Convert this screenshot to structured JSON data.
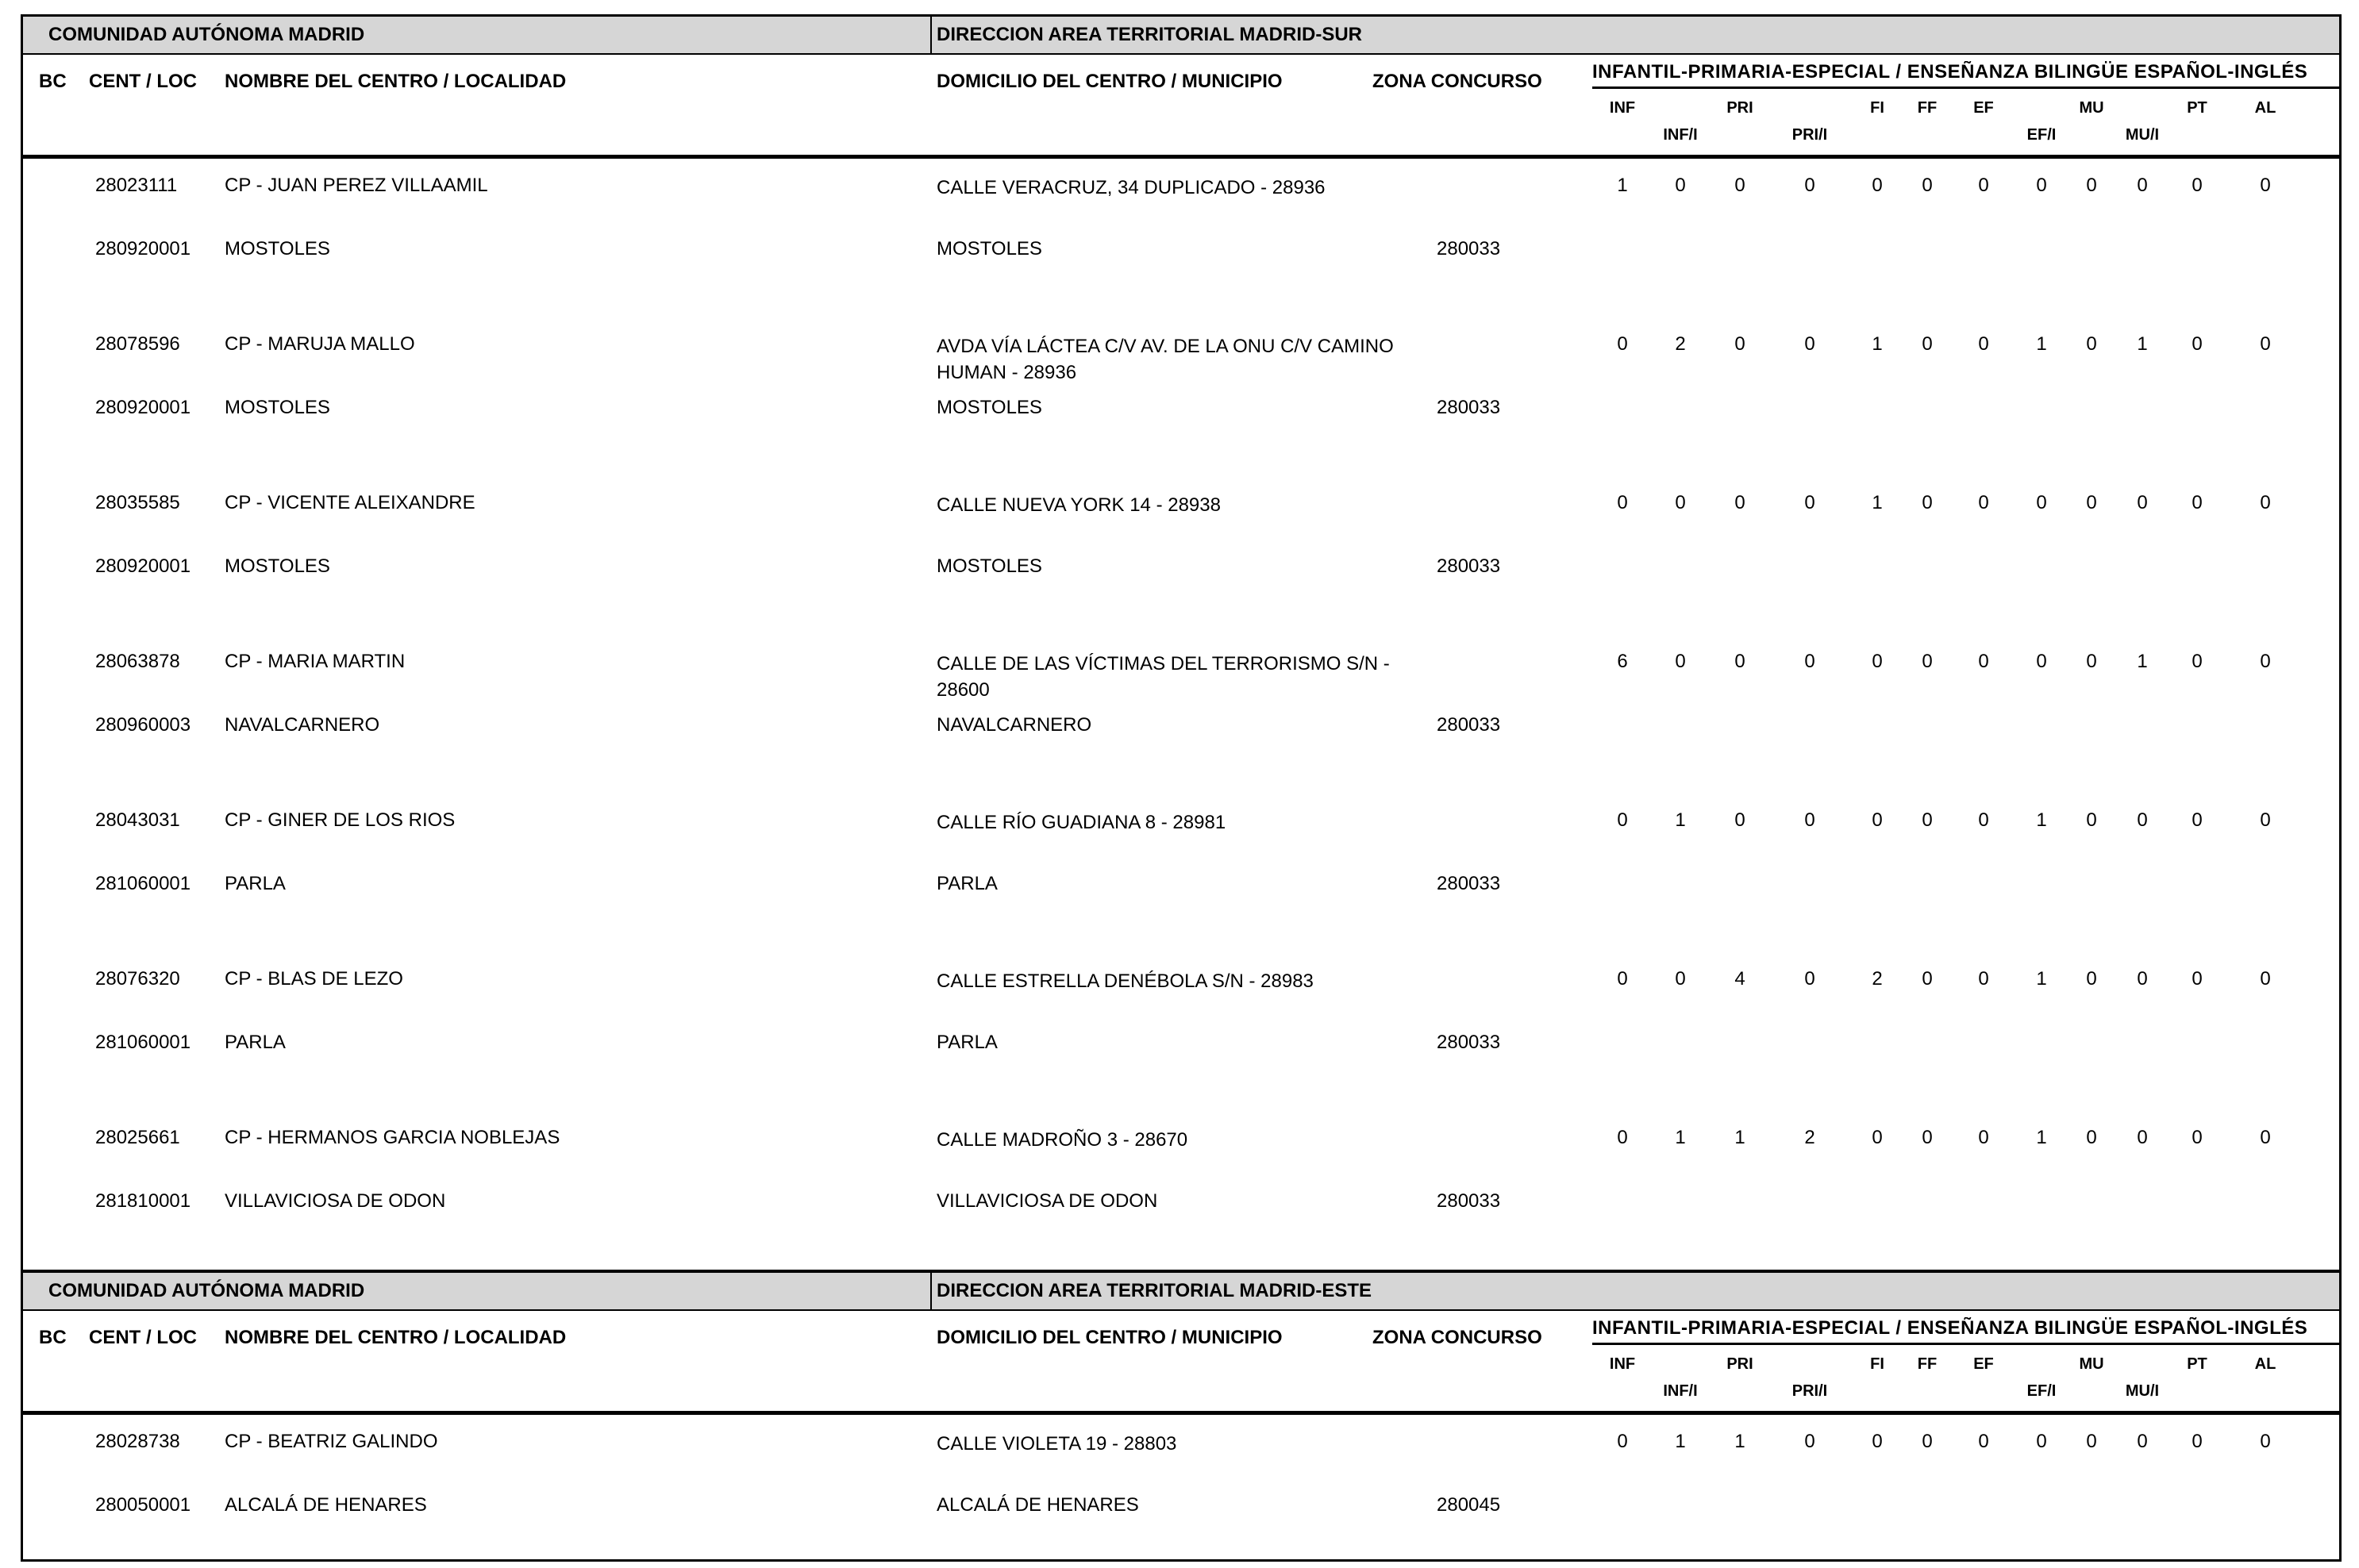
{
  "colors": {
    "band_bg": "#d6d6d6",
    "border": "#000000"
  },
  "columns": {
    "bc": "BC",
    "cent_loc": "CENT / LOC",
    "nombre": "NOMBRE DEL CENTRO / LOCALIDAD",
    "domicilio": "DOMICILIO DEL CENTRO / MUNICIPIO",
    "zona": "ZONA CONCURSO",
    "group": "INFANTIL-PRIMARIA-ESPECIAL / ENSEÑANZA BILINGÜE ESPAÑOL-INGLÉS",
    "subcols": [
      "INF",
      "INF/I",
      "PRI",
      "PRI/I",
      "FI",
      "FF",
      "EF",
      "EF/I",
      "MU",
      "MU/I",
      "PT",
      "AL"
    ]
  },
  "sections": [
    {
      "region_label": "COMUNIDAD AUTÓNOMA MADRID",
      "area_label": "DIRECCION AREA TERRITORIAL MADRID-SUR",
      "rows": [
        {
          "code": "28023111",
          "name": "CP - JUAN PEREZ VILLAAMIL",
          "address": "CALLE VERACRUZ, 34 DUPLICADO  - 28936",
          "loc_code": "280920001",
          "locality": "MOSTOLES",
          "municipality": "MOSTOLES",
          "zona": "280033",
          "values": [
            "1",
            "0",
            "0",
            "0",
            "0",
            "0",
            "0",
            "0",
            "0",
            "0",
            "0",
            "0"
          ]
        },
        {
          "code": "28078596",
          "name": "CP - MARUJA MALLO",
          "address": "AVDA VÍA LÁCTEA C/V AV. DE LA ONU C/V CAMINO HUMAN  - 28936",
          "loc_code": "280920001",
          "locality": "MOSTOLES",
          "municipality": "MOSTOLES",
          "zona": "280033",
          "values": [
            "0",
            "2",
            "0",
            "0",
            "1",
            "0",
            "0",
            "1",
            "0",
            "1",
            "0",
            "0"
          ]
        },
        {
          "code": "28035585",
          "name": "CP - VICENTE ALEIXANDRE",
          "address": "CALLE NUEVA YORK 14 - 28938",
          "loc_code": "280920001",
          "locality": "MOSTOLES",
          "municipality": "MOSTOLES",
          "zona": "280033",
          "values": [
            "0",
            "0",
            "0",
            "0",
            "1",
            "0",
            "0",
            "0",
            "0",
            "0",
            "0",
            "0"
          ]
        },
        {
          "code": "28063878",
          "name": "CP - MARIA MARTIN",
          "address": "CALLE DE LAS VÍCTIMAS DEL TERRORISMO S/N - 28600",
          "loc_code": "280960003",
          "locality": "NAVALCARNERO",
          "municipality": "NAVALCARNERO",
          "zona": "280033",
          "values": [
            "6",
            "0",
            "0",
            "0",
            "0",
            "0",
            "0",
            "0",
            "0",
            "1",
            "0",
            "0"
          ]
        },
        {
          "code": "28043031",
          "name": "CP - GINER DE LOS RIOS",
          "address": "CALLE RÍO GUADIANA 8 - 28981",
          "loc_code": "281060001",
          "locality": "PARLA",
          "municipality": "PARLA",
          "zona": "280033",
          "values": [
            "0",
            "1",
            "0",
            "0",
            "0",
            "0",
            "0",
            "1",
            "0",
            "0",
            "0",
            "0"
          ]
        },
        {
          "code": "28076320",
          "name": "CP - BLAS DE LEZO",
          "address": "CALLE ESTRELLA DENÉBOLA S/N - 28983",
          "loc_code": "281060001",
          "locality": "PARLA",
          "municipality": "PARLA",
          "zona": "280033",
          "values": [
            "0",
            "0",
            "4",
            "0",
            "2",
            "0",
            "0",
            "1",
            "0",
            "0",
            "0",
            "0"
          ]
        },
        {
          "code": "28025661",
          "name": "CP - HERMANOS GARCIA NOBLEJAS",
          "address": "CALLE MADROÑO 3 - 28670",
          "loc_code": "281810001",
          "locality": "VILLAVICIOSA DE ODON",
          "municipality": "VILLAVICIOSA DE ODON",
          "zona": "280033",
          "values": [
            "0",
            "1",
            "1",
            "2",
            "0",
            "0",
            "0",
            "1",
            "0",
            "0",
            "0",
            "0"
          ]
        }
      ]
    },
    {
      "region_label": "COMUNIDAD AUTÓNOMA MADRID",
      "area_label": "DIRECCION AREA TERRITORIAL MADRID-ESTE",
      "rows": [
        {
          "code": "28028738",
          "name": "CP - BEATRIZ GALINDO",
          "address": "CALLE VIOLETA 19 - 28803",
          "loc_code": "280050001",
          "locality": "ALCALÁ DE HENARES",
          "municipality": "ALCALÁ DE HENARES",
          "zona": "280045",
          "values": [
            "0",
            "1",
            "1",
            "0",
            "0",
            "0",
            "0",
            "0",
            "0",
            "0",
            "0",
            "0"
          ]
        }
      ]
    }
  ]
}
